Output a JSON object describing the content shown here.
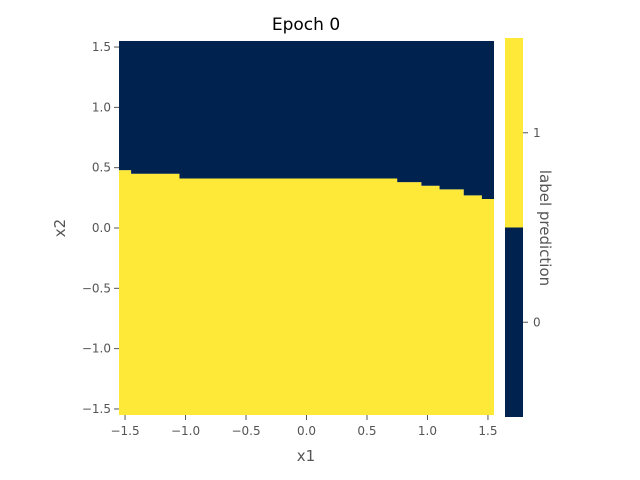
{
  "chart_data": {
    "type": "heatmap",
    "title": "Epoch 0",
    "xlabel": "x1",
    "ylabel": "x2",
    "xlim": [
      -1.55,
      1.55
    ],
    "ylim": [
      -1.55,
      1.55
    ],
    "xticks": [
      -1.5,
      -1.0,
      -0.5,
      0.0,
      0.5,
      1.0,
      1.5
    ],
    "xtick_labels": [
      "−1.5",
      "−1.0",
      "−0.5",
      "0.0",
      "0.5",
      "1.0",
      "1.5"
    ],
    "yticks": [
      -1.5,
      -1.0,
      -0.5,
      0.0,
      0.5,
      1.0,
      1.5
    ],
    "ytick_labels": [
      "−1.5",
      "−1.0",
      "−0.5",
      "0.0",
      "0.5",
      "1.0",
      "1.5"
    ],
    "grid": false,
    "colors": {
      "label_0": "#00224e",
      "label_1": "#fee838",
      "axis": "#555555"
    },
    "regions": [
      {
        "label": 0,
        "description": "above boundary"
      },
      {
        "label": 1,
        "description": "below boundary"
      }
    ],
    "decision_boundary": {
      "x": [
        -1.55,
        -1.45,
        -1.45,
        -1.05,
        -1.05,
        0.75,
        0.75,
        0.95,
        0.95,
        1.1,
        1.1,
        1.3,
        1.3,
        1.45,
        1.45,
        1.52
      ],
      "y": [
        0.48,
        0.48,
        0.45,
        0.45,
        0.41,
        0.41,
        0.38,
        0.38,
        0.35,
        0.35,
        0.32,
        0.32,
        0.27,
        0.27,
        0.24,
        0.24
      ]
    },
    "colorbar": {
      "label": "label prediction",
      "levels": [
        0,
        1
      ],
      "tick_labels": [
        "0",
        "1"
      ]
    }
  }
}
